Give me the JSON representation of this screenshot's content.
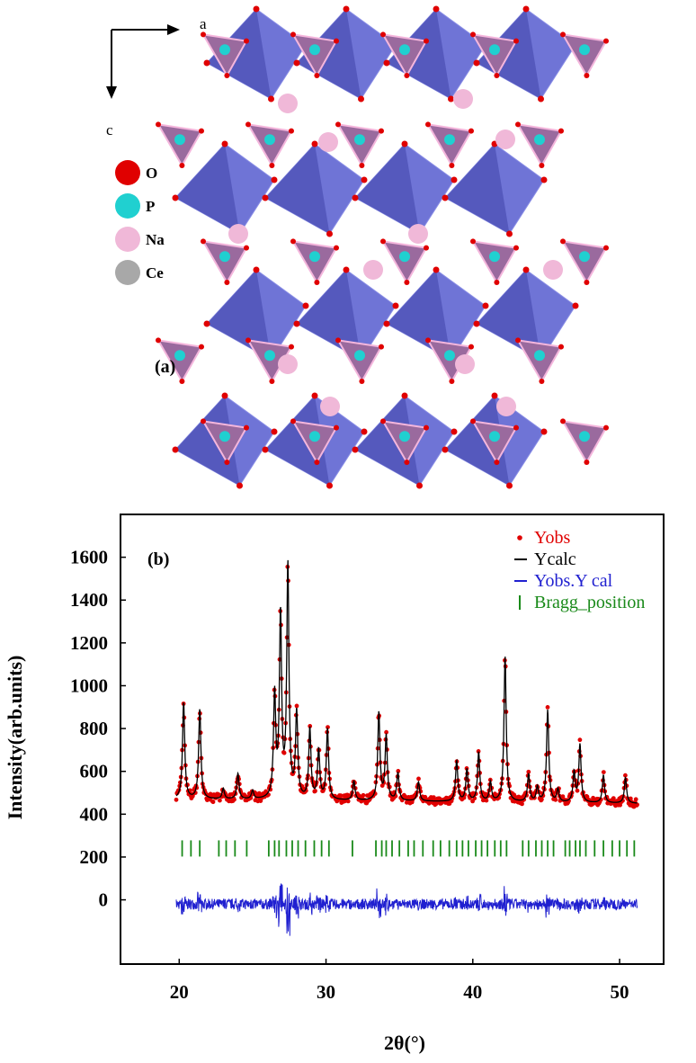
{
  "structure": {
    "panel_label": "(a)",
    "axes": {
      "a": "a",
      "c": "c"
    },
    "legend": [
      {
        "label": "O",
        "color": "#e00000"
      },
      {
        "label": "P",
        "color": "#20d0d0"
      },
      {
        "label": "Na",
        "color": "#f0b8d8"
      },
      {
        "label": "Ce",
        "color": "#a8a8a8"
      }
    ],
    "colors": {
      "octahedron": "#6f74d6",
      "octahedron_dark": "#4a4fb2",
      "tetrahedron": "#9a6a9e",
      "tetra_edge": "#f4b6dc"
    }
  },
  "chart_data": {
    "type": "line",
    "panel_label": "(b)",
    "xlabel": "2θ(°)",
    "ylabel": "Intensity(arb.units)",
    "xlim": [
      16,
      53
    ],
    "ylim": [
      -300,
      1800
    ],
    "xticks": [
      20,
      30,
      40,
      50
    ],
    "xtick_labels": [
      "20",
      "30",
      "40",
      "50"
    ],
    "yticks": [
      0,
      200,
      400,
      600,
      800,
      1000,
      1200,
      1400,
      1600
    ],
    "grid": false,
    "legend_position": "top-right",
    "legend": [
      {
        "label": "Yobs",
        "color": "#e00000",
        "marker": "dot"
      },
      {
        "label": "Ycalc",
        "color": "#000000",
        "marker": "line"
      },
      {
        "label": "Yobs.Y cal",
        "color": "#2020d0",
        "marker": "line"
      },
      {
        "label": "Bragg_position",
        "color": "#1a8a1a",
        "marker": "tick"
      }
    ],
    "baseline": 470,
    "peaks": [
      {
        "x": 20.3,
        "y": 920
      },
      {
        "x": 21.4,
        "y": 890
      },
      {
        "x": 23.0,
        "y": 520
      },
      {
        "x": 24.0,
        "y": 590
      },
      {
        "x": 25.0,
        "y": 510
      },
      {
        "x": 26.5,
        "y": 950
      },
      {
        "x": 26.9,
        "y": 1320
      },
      {
        "x": 27.4,
        "y": 1550
      },
      {
        "x": 28.0,
        "y": 870
      },
      {
        "x": 28.9,
        "y": 800
      },
      {
        "x": 29.5,
        "y": 700
      },
      {
        "x": 30.1,
        "y": 800
      },
      {
        "x": 31.9,
        "y": 560
      },
      {
        "x": 33.6,
        "y": 880
      },
      {
        "x": 34.1,
        "y": 770
      },
      {
        "x": 34.9,
        "y": 600
      },
      {
        "x": 36.3,
        "y": 560
      },
      {
        "x": 38.9,
        "y": 660
      },
      {
        "x": 39.6,
        "y": 620
      },
      {
        "x": 40.4,
        "y": 700
      },
      {
        "x": 41.2,
        "y": 560
      },
      {
        "x": 42.2,
        "y": 1150
      },
      {
        "x": 43.8,
        "y": 600
      },
      {
        "x": 44.4,
        "y": 540
      },
      {
        "x": 45.1,
        "y": 900
      },
      {
        "x": 45.8,
        "y": 530
      },
      {
        "x": 46.9,
        "y": 610
      },
      {
        "x": 47.3,
        "y": 740
      },
      {
        "x": 48.9,
        "y": 600
      },
      {
        "x": 50.4,
        "y": 590
      }
    ],
    "bragg_positions": [
      20.2,
      20.8,
      21.4,
      22.7,
      23.2,
      23.8,
      24.6,
      26.1,
      26.5,
      26.8,
      27.3,
      27.7,
      28.1,
      28.6,
      29.2,
      29.7,
      30.2,
      31.8,
      33.4,
      33.8,
      34.1,
      34.5,
      35.0,
      35.6,
      36.0,
      36.6,
      37.3,
      37.8,
      38.4,
      38.9,
      39.3,
      39.7,
      40.2,
      40.6,
      41.0,
      41.5,
      41.9,
      42.3,
      43.4,
      43.8,
      44.3,
      44.7,
      45.1,
      45.5,
      46.3,
      46.6,
      47.0,
      47.3,
      47.7,
      48.3,
      48.9,
      49.5,
      50.0,
      50.5,
      51.0
    ],
    "bragg_level": 240,
    "difference_level": -20
  }
}
